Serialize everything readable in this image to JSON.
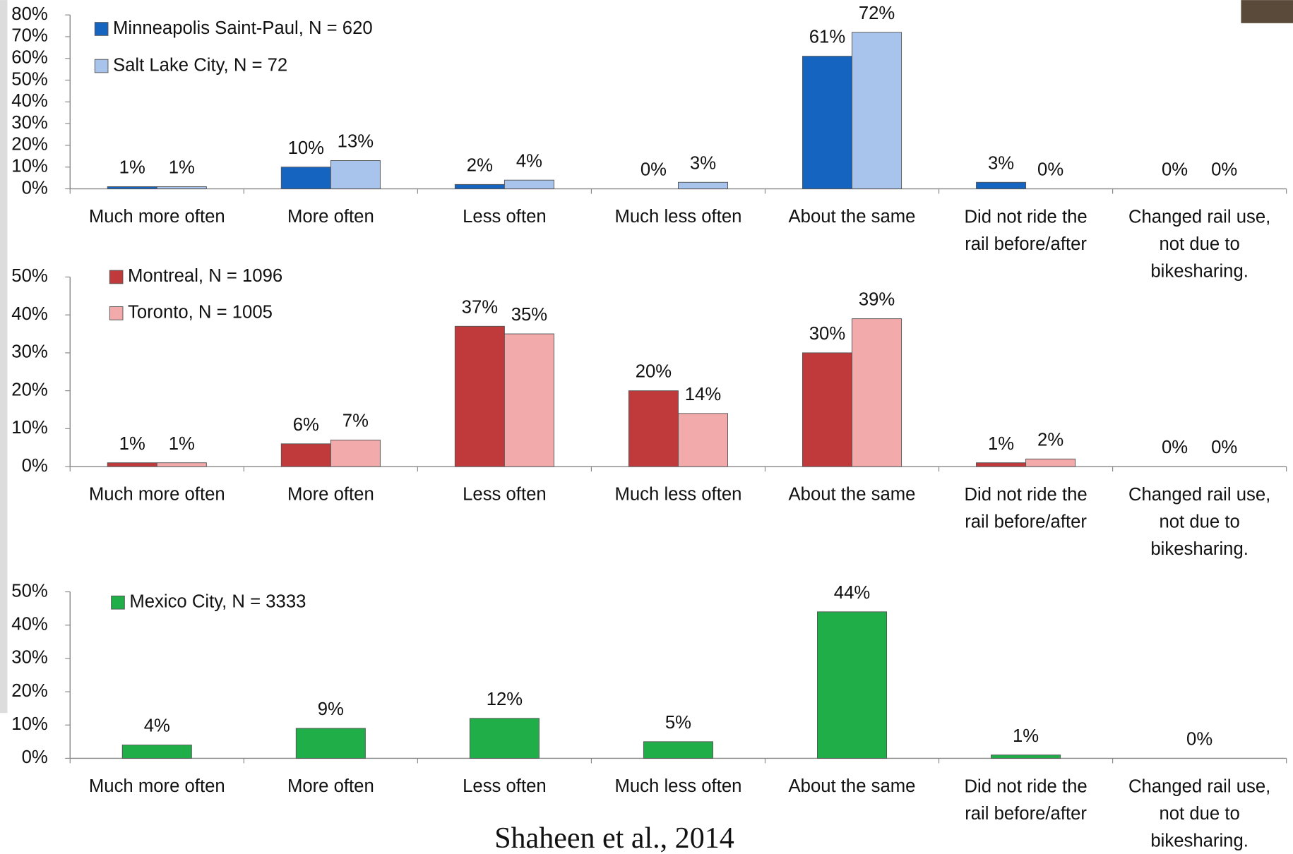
{
  "chart_data": [
    {
      "type": "bar",
      "categories": [
        "Much more often",
        "More often",
        "Less often",
        "Much less often",
        "About the same",
        "Did not ride the\nrail before/after",
        "Changed rail use,\nnot due to\nbikesharing."
      ],
      "series": [
        {
          "name": "Minneapolis Saint-Paul, N = 620",
          "color": "#1565c0",
          "values": [
            1,
            10,
            2,
            0,
            61,
            3,
            0
          ],
          "value_labels": [
            "1%",
            "10%",
            "2%",
            "0%",
            "61%",
            "3%",
            "0%"
          ]
        },
        {
          "name": "Salt Lake City, N = 72",
          "color": "#a9c4ec",
          "values": [
            1,
            13,
            4,
            3,
            72,
            0,
            0
          ],
          "value_labels": [
            "1%",
            "13%",
            "4%",
            "3%",
            "72%",
            "0%",
            "0%"
          ]
        }
      ],
      "ylim": [
        0,
        80
      ],
      "yticks": [
        {
          "value": 0,
          "label": "0%"
        },
        {
          "value": 10,
          "label": "10%"
        },
        {
          "value": 20,
          "label": "20%"
        },
        {
          "value": 30,
          "label": "30%"
        },
        {
          "value": 40,
          "label": "40%"
        },
        {
          "value": 50,
          "label": "50%"
        },
        {
          "value": 60,
          "label": "60%"
        },
        {
          "value": 70,
          "label": "70%"
        },
        {
          "value": 80,
          "label": "80%"
        }
      ]
    },
    {
      "type": "bar",
      "categories": [
        "Much more often",
        "More often",
        "Less often",
        "Much less often",
        "About the same",
        "Did not ride the\nrail before/after",
        "Changed rail use,\nnot due to\nbikesharing."
      ],
      "series": [
        {
          "name": "Montreal, N = 1096",
          "color": "#c0393b",
          "values": [
            1,
            6,
            37,
            20,
            30,
            1,
            0
          ],
          "value_labels": [
            "1%",
            "6%",
            "37%",
            "20%",
            "30%",
            "1%",
            "0%"
          ]
        },
        {
          "name": "Toronto, N = 1005",
          "color": "#f2aaaa",
          "values": [
            1,
            7,
            35,
            14,
            39,
            2,
            0
          ],
          "value_labels": [
            "1%",
            "7%",
            "35%",
            "14%",
            "39%",
            "2%",
            "0%"
          ]
        }
      ],
      "ylim": [
        0,
        50
      ],
      "yticks": [
        {
          "value": 0,
          "label": "0%"
        },
        {
          "value": 10,
          "label": "10%"
        },
        {
          "value": 20,
          "label": "20%"
        },
        {
          "value": 30,
          "label": "30%"
        },
        {
          "value": 40,
          "label": "40%"
        },
        {
          "value": 50,
          "label": "50%"
        }
      ]
    },
    {
      "type": "bar",
      "categories": [
        "Much more often",
        "More often",
        "Less often",
        "Much less often",
        "About the same",
        "Did not ride the\nrail before/after",
        "Changed rail use,\nnot due to\nbikesharing."
      ],
      "series": [
        {
          "name": "Mexico City, N = 3333",
          "color": "#1fae48",
          "values": [
            4,
            9,
            12,
            5,
            44,
            1,
            0
          ],
          "value_labels": [
            "4%",
            "9%",
            "12%",
            "5%",
            "44%",
            "1%",
            "0%"
          ]
        }
      ],
      "ylim": [
        0,
        50
      ],
      "yticks": [
        {
          "value": 0,
          "label": "0%"
        },
        {
          "value": 10,
          "label": "10%"
        },
        {
          "value": 20,
          "label": "20%"
        },
        {
          "value": 30,
          "label": "30%"
        },
        {
          "value": 40,
          "label": "40%"
        },
        {
          "value": 50,
          "label": "50%"
        }
      ]
    }
  ],
  "caption": "Shaheen et al., 2014"
}
